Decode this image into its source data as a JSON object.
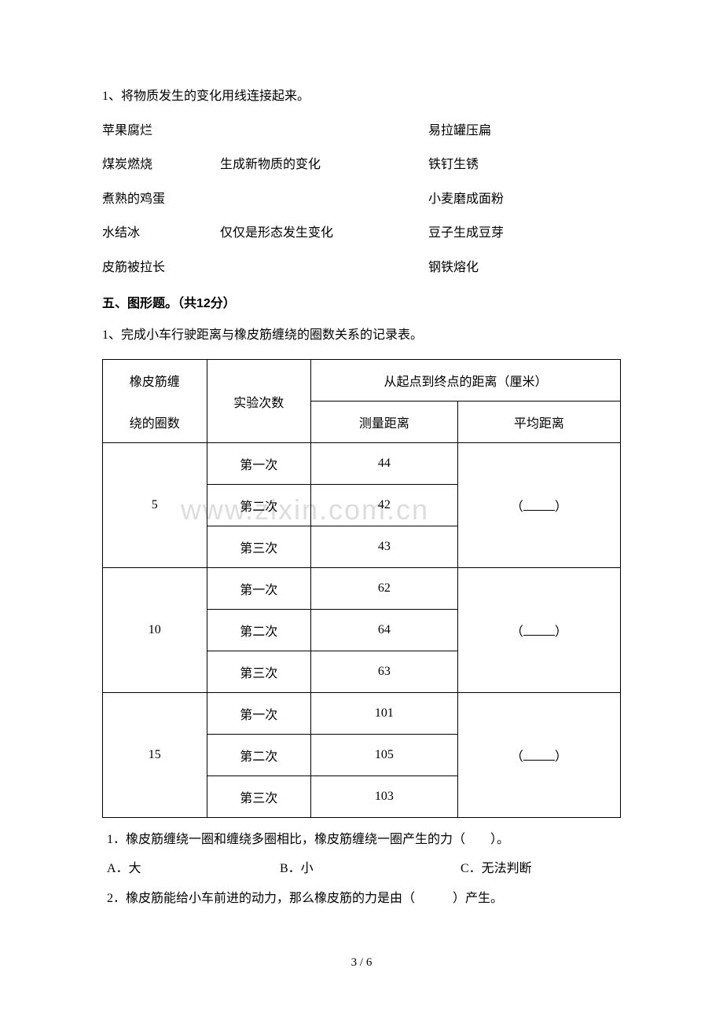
{
  "q1_intro": "1、将物质发生的变化用线连接起来。",
  "matching": {
    "rows": [
      {
        "left": "苹果腐烂",
        "mid": "",
        "right": "易拉罐压扁"
      },
      {
        "left": "煤炭燃烧",
        "mid": "生成新物质的变化",
        "right": "铁钉生锈"
      },
      {
        "left": "煮熟的鸡蛋",
        "mid": "",
        "right": "小麦磨成面粉"
      },
      {
        "left": "水结冰",
        "mid": "仅仅是形态发生变化",
        "right": "豆子生成豆芽"
      },
      {
        "left": "皮筋被拉长",
        "mid": "",
        "right": "钢铁熔化"
      }
    ]
  },
  "section5_title": "五、图形题。（共12分）",
  "q5_1_intro": "1、完成小车行驶距离与橡皮筋缠绕的圈数关系的记录表。",
  "table": {
    "header": {
      "col1_line1": "橡皮筋缠",
      "col1_line2": "绕的圈数",
      "col2": "实验次数",
      "col34_top": "从起点到终点的距离（厘米）",
      "col3": "测量距离",
      "col4": "平均距离"
    },
    "groups": [
      {
        "turns": "5",
        "trials": [
          {
            "trial": "第一次",
            "dist": "44"
          },
          {
            "trial": "第二次",
            "dist": "42"
          },
          {
            "trial": "第三次",
            "dist": "43"
          }
        ]
      },
      {
        "turns": "10",
        "trials": [
          {
            "trial": "第一次",
            "dist": "62"
          },
          {
            "trial": "第二次",
            "dist": "64"
          },
          {
            "trial": "第三次",
            "dist": "63"
          }
        ]
      },
      {
        "turns": "15",
        "trials": [
          {
            "trial": "第一次",
            "dist": "101"
          },
          {
            "trial": "第二次",
            "dist": "105"
          },
          {
            "trial": "第三次",
            "dist": "103"
          }
        ]
      }
    ]
  },
  "sub_q1": "1．橡皮筋缠绕一圈和缠绕多圈相比，橡皮筋缠绕一圈产生的力（　　）。",
  "sub_q1_choices": {
    "a": "A．大",
    "b": "B．小",
    "c": "C．无法判断"
  },
  "sub_q2": "2．橡皮筋能给小车前进的动力，那么橡皮筋的力是由（　　　）产生。",
  "watermark": "www.zixin.com.cn",
  "pagenum": "3 / 6"
}
